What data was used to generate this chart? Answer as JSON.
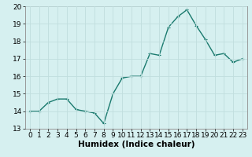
{
  "x": [
    0,
    1,
    2,
    3,
    4,
    5,
    6,
    7,
    8,
    9,
    10,
    11,
    12,
    13,
    14,
    15,
    16,
    17,
    18,
    19,
    20,
    21,
    22,
    23
  ],
  "y": [
    14.0,
    14.0,
    14.5,
    14.7,
    14.7,
    14.1,
    14.0,
    13.9,
    13.3,
    15.0,
    15.9,
    16.0,
    16.0,
    17.3,
    17.2,
    18.8,
    19.4,
    19.8,
    18.9,
    18.1,
    17.2,
    17.3,
    16.8,
    17.0
  ],
  "line_color": "#1a7a6e",
  "marker": "+",
  "marker_size": 3,
  "bg_color": "#d6f0f0",
  "grid_color": "#c0dede",
  "xlabel": "Humidex (Indice chaleur)",
  "xlim": [
    -0.5,
    23.5
  ],
  "ylim": [
    13,
    20
  ],
  "yticks": [
    13,
    14,
    15,
    16,
    17,
    18,
    19,
    20
  ],
  "xticks": [
    0,
    1,
    2,
    3,
    4,
    5,
    6,
    7,
    8,
    9,
    10,
    11,
    12,
    13,
    14,
    15,
    16,
    17,
    18,
    19,
    20,
    21,
    22,
    23
  ],
  "tick_label_fontsize": 6.5,
  "xlabel_fontsize": 7.5,
  "line_width": 1.0
}
